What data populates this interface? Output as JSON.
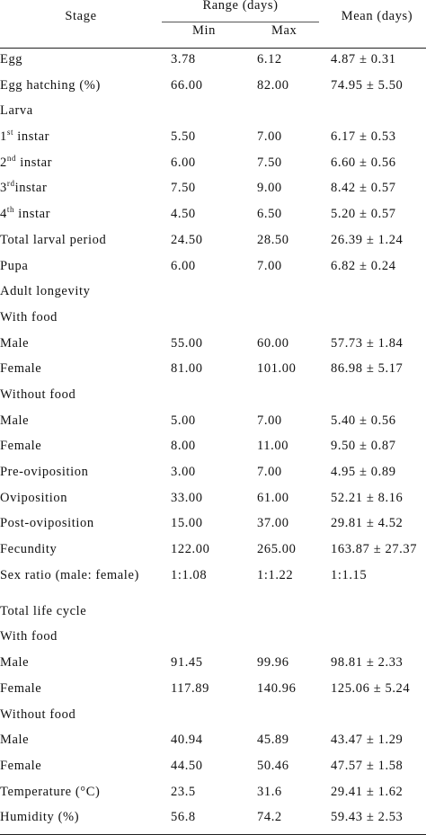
{
  "header": {
    "stage": "Stage",
    "range": "Range (days)",
    "min": "Min",
    "max": "Max",
    "mean": "Mean (days)"
  },
  "rows": [
    {
      "stage": "Egg",
      "min": "3.78",
      "max": "6.12",
      "mean": "4.87 ± 0.31"
    },
    {
      "stage": "Egg hatching (%)",
      "min": "66.00",
      "max": "82.00",
      "mean": "74.95 ± 5.50"
    },
    {
      "stage": "Larva",
      "min": "",
      "max": "",
      "mean": ""
    },
    {
      "stage_num": "1",
      "stage_sup": "st",
      "stage_rest": " instar",
      "min": "5.50",
      "max": "7.00",
      "mean": "6.17 ± 0.53"
    },
    {
      "stage_num": "2",
      "stage_sup": "nd",
      "stage_rest": " instar",
      "min": "6.00",
      "max": "7.50",
      "mean": "6.60 ± 0.56"
    },
    {
      "stage_num": "3",
      "stage_sup": "rd",
      "stage_rest": "instar",
      "min": "7.50",
      "max": "9.00",
      "mean": "8.42 ± 0.57"
    },
    {
      "stage_num": "4",
      "stage_sup": "th",
      "stage_rest": " instar",
      "min": "4.50",
      "max": "6.50",
      "mean": "5.20 ± 0.57"
    },
    {
      "stage": "Total larval period",
      "min": "24.50",
      "max": "28.50",
      "mean": "26.39 ± 1.24"
    },
    {
      "stage": "Pupa",
      "min": "6.00",
      "max": "7.00",
      "mean": "6.82 ± 0.24"
    },
    {
      "stage": "Adult longevity",
      "min": "",
      "max": "",
      "mean": ""
    },
    {
      "stage": "With food",
      "min": "",
      "max": "",
      "mean": ""
    },
    {
      "stage": "Male",
      "min": "55.00",
      "max": "60.00",
      "mean": "57.73 ± 1.84"
    },
    {
      "stage": "Female",
      "min": "81.00",
      "max": "101.00",
      "mean": "86.98 ± 5.17"
    },
    {
      "stage": "Without food",
      "min": "",
      "max": "",
      "mean": ""
    },
    {
      "stage": "Male",
      "min": "5.00",
      "max": "7.00",
      "mean": "5.40 ± 0.56"
    },
    {
      "stage": "Female",
      "min": "8.00",
      "max": "11.00",
      "mean": "9.50 ± 0.87"
    },
    {
      "stage": "Pre-oviposition",
      "min": "3.00",
      "max": "7.00",
      "mean": "4.95 ± 0.89"
    },
    {
      "stage": "Oviposition",
      "min": "33.00",
      "max": "61.00",
      "mean": "52.21 ± 8.16"
    },
    {
      "stage": "Post-oviposition",
      "min": "15.00",
      "max": "37.00",
      "mean": "29.81 ± 4.52"
    },
    {
      "stage": "Fecundity",
      "min": "122.00",
      "max": "265.00",
      "mean": "163.87 ± 27.37"
    },
    {
      "stage": "Sex ratio (male: female)",
      "min": "1:1.08",
      "max": "1:1.22",
      "mean": "1:1.15",
      "tall": true
    },
    {
      "stage": "Total life cycle",
      "min": "",
      "max": "",
      "mean": ""
    },
    {
      "stage": "With food",
      "min": "",
      "max": "",
      "mean": ""
    },
    {
      "stage": "Male",
      "min": "91.45",
      "max": "99.96",
      "mean": "98.81 ± 2.33"
    },
    {
      "stage": "Female",
      "min": "117.89",
      "max": "140.96",
      "mean": "125.06 ± 5.24"
    },
    {
      "stage": "Without food",
      "min": "",
      "max": "",
      "mean": ""
    },
    {
      "stage": "Male",
      "min": "40.94",
      "max": "45.89",
      "mean": "43.47 ± 1.29"
    },
    {
      "stage": "Female",
      "min": "44.50",
      "max": "50.46",
      "mean": "47.57 ± 1.58"
    },
    {
      "stage": "Temperature (°C)",
      "min": "23.5",
      "max": "31.6",
      "mean": "29.41 ± 1.62"
    },
    {
      "stage": "Humidity (%)",
      "min": "56.8",
      "max": "74.2",
      "mean": "59.43 ± 2.53"
    }
  ]
}
